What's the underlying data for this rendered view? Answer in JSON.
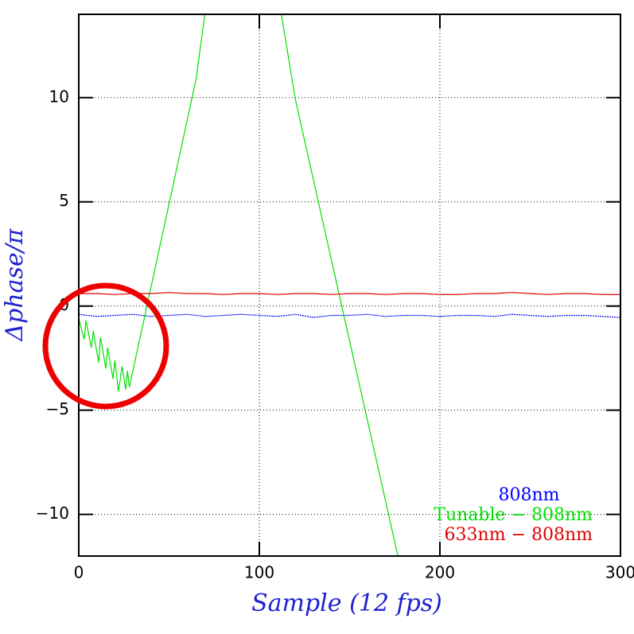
{
  "chart_data": {
    "type": "line",
    "xlabel": "Sample (12 fps)",
    "ylabel": "Δphase/π",
    "xlim": [
      0,
      300
    ],
    "ylim": [
      -12,
      14
    ],
    "xticks": [
      0,
      100,
      200,
      300
    ],
    "yticks": [
      {
        "value": -10,
        "label": "−10"
      },
      {
        "value": -5,
        "label": "−5"
      },
      0,
      5,
      10
    ],
    "grid": true,
    "legend": "lower right",
    "series": [
      {
        "name": "808nm",
        "color": "#0000ff",
        "x": [
          0,
          10,
          20,
          30,
          40,
          50,
          60,
          70,
          80,
          90,
          100,
          110,
          120,
          130,
          140,
          150,
          160,
          170,
          180,
          190,
          200,
          210,
          220,
          230,
          240,
          250,
          260,
          270,
          280,
          290,
          300
        ],
        "values": [
          -0.4,
          -0.5,
          -0.45,
          -0.4,
          -0.5,
          -0.45,
          -0.4,
          -0.5,
          -0.45,
          -0.4,
          -0.45,
          -0.5,
          -0.4,
          -0.55,
          -0.45,
          -0.45,
          -0.4,
          -0.5,
          -0.45,
          -0.45,
          -0.5,
          -0.45,
          -0.45,
          -0.5,
          -0.4,
          -0.45,
          -0.5,
          -0.45,
          -0.45,
          -0.5,
          -0.55
        ]
      },
      {
        "name": "Tunable − 808nm",
        "color": "#00e000",
        "x": [
          0,
          3,
          4,
          7,
          8,
          11,
          12,
          15,
          16,
          19,
          20,
          22,
          24,
          26,
          27,
          28,
          65,
          70,
          91,
          112,
          120,
          177
        ],
        "values": [
          -0.6,
          -1.6,
          -0.7,
          -2.0,
          -1.2,
          -2.7,
          -1.5,
          -3.0,
          -2.0,
          -3.5,
          -2.6,
          -4.1,
          -2.9,
          -4.0,
          -3.1,
          -3.9,
          10.9,
          14.1,
          null,
          14.1,
          9.9,
          -12.1
        ]
      },
      {
        "name": "633nm − 808nm",
        "color": "#e00000",
        "x": [
          0,
          10,
          20,
          30,
          40,
          50,
          60,
          70,
          80,
          90,
          100,
          110,
          120,
          130,
          140,
          150,
          160,
          170,
          180,
          190,
          200,
          210,
          220,
          230,
          240,
          250,
          260,
          270,
          280,
          290,
          300
        ],
        "values": [
          0.6,
          0.6,
          0.55,
          0.6,
          0.6,
          0.65,
          0.6,
          0.6,
          0.55,
          0.6,
          0.6,
          0.55,
          0.6,
          0.6,
          0.55,
          0.6,
          0.6,
          0.55,
          0.6,
          0.6,
          0.55,
          0.55,
          0.6,
          0.6,
          0.65,
          0.6,
          0.55,
          0.6,
          0.6,
          0.55,
          0.55
        ]
      }
    ]
  }
}
